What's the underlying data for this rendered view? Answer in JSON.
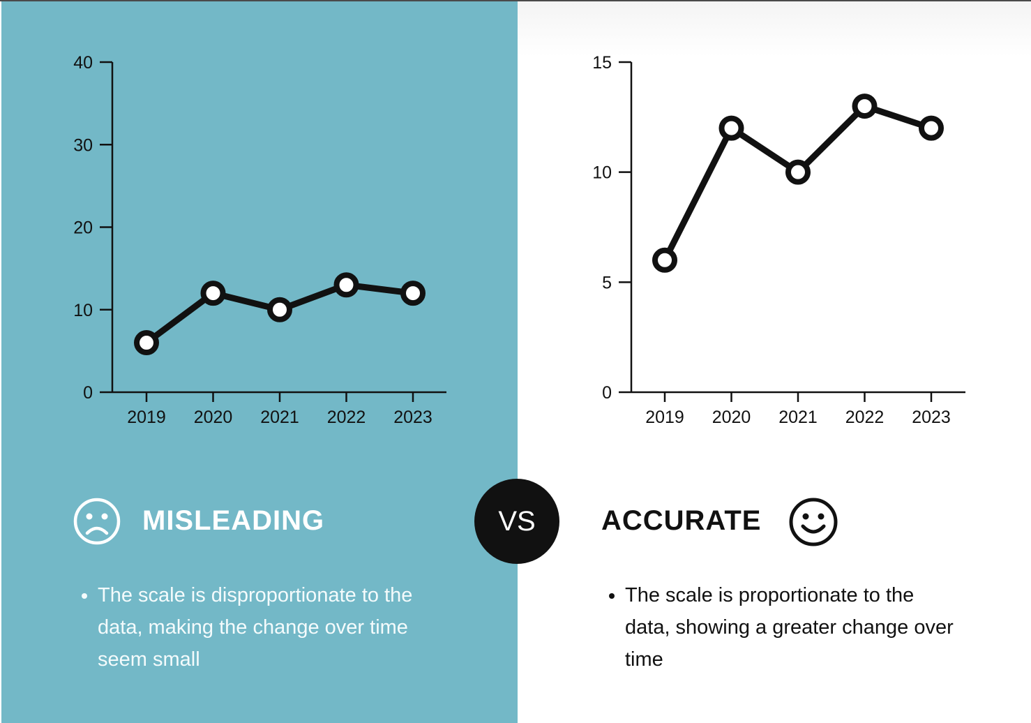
{
  "colors": {
    "left_background": "#73b8c7",
    "right_background": "#ffffff",
    "line": "#111111",
    "marker_fill": "#ffffff",
    "vs_circle": "#111111"
  },
  "chart_data": [
    {
      "type": "line",
      "title": "",
      "xlabel": "",
      "ylabel": "",
      "categories": [
        "2019",
        "2020",
        "2021",
        "2022",
        "2023"
      ],
      "values": [
        6,
        12,
        10,
        13,
        12
      ],
      "ylim": [
        0,
        40
      ],
      "yticks": [
        0,
        10,
        20,
        30,
        40
      ],
      "grid": false
    },
    {
      "type": "line",
      "title": "",
      "xlabel": "",
      "ylabel": "",
      "categories": [
        "2019",
        "2020",
        "2021",
        "2022",
        "2023"
      ],
      "values": [
        6,
        12,
        10,
        13,
        12
      ],
      "ylim": [
        0,
        15
      ],
      "yticks": [
        0,
        5,
        10,
        15
      ],
      "grid": false
    }
  ],
  "misleading": {
    "heading": "MISLEADING",
    "icon": "sad-face-icon",
    "bullets": [
      "The scale is disproportionate to the data, making the change over time seem small"
    ]
  },
  "vs_label": "VS",
  "accurate": {
    "heading": "ACCURATE",
    "icon": "happy-face-icon",
    "bullets": [
      "The scale is proportionate to the data, showing a greater change over time"
    ]
  }
}
